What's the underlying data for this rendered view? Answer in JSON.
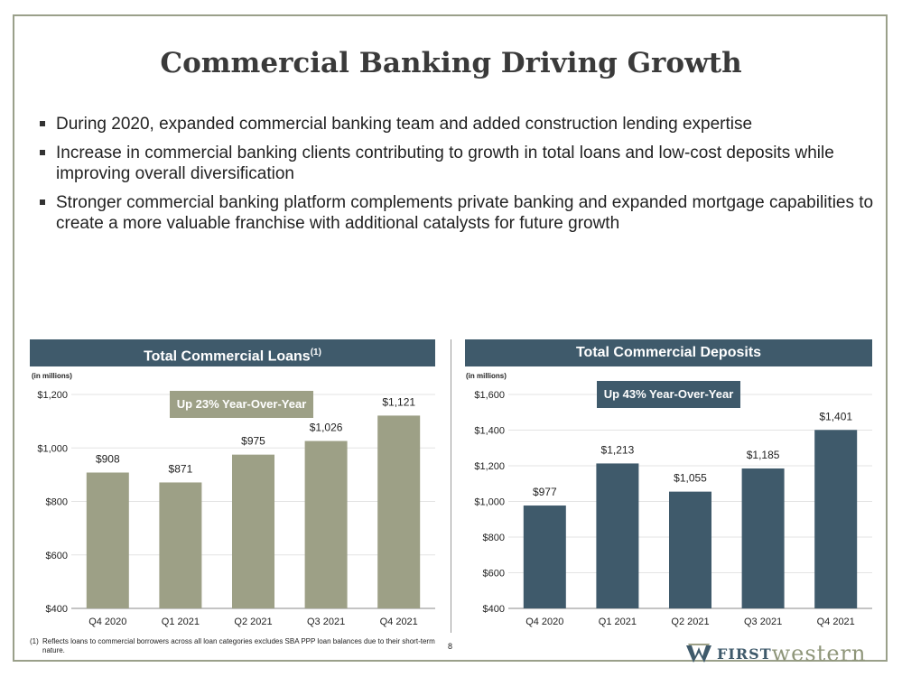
{
  "title": "Commercial Banking Driving Growth",
  "bullets": [
    "During 2020, expanded commercial banking team and added construction lending expertise",
    "Increase in commercial banking clients contributing to growth in total loans and low-cost deposits while improving overall diversification",
    "Stronger commercial banking platform complements private banking and expanded mortgage capabilities to create a more valuable franchise with additional catalysts for future growth"
  ],
  "loans_panel": {
    "header": "Total Commercial Loans",
    "header_sup": "(1)",
    "unit": "(in millions)",
    "callout": "Up 23% Year-Over-Year"
  },
  "deposits_panel": {
    "header": "Total Commercial Deposits",
    "unit": "(in millions)",
    "callout": "Up 43% Year-Over-Year"
  },
  "colors": {
    "loans_bar": "#9da086",
    "deposits_bar": "#3f5a6b",
    "header_bg": "#3f5a6b",
    "frame": "#9aa08a"
  },
  "chart_data": [
    {
      "type": "bar",
      "title": "Total Commercial Loans(1)",
      "categories": [
        "Q4 2020",
        "Q1 2021",
        "Q2 2021",
        "Q3 2021",
        "Q4 2021"
      ],
      "values": [
        908,
        871,
        975,
        1026,
        1121
      ],
      "value_labels": [
        "$908",
        "$871",
        "$975",
        "$1,026",
        "$1,121"
      ],
      "ylim": [
        400,
        1200
      ],
      "yticks": [
        400,
        600,
        800,
        1000,
        1200
      ],
      "ytick_labels": [
        "$400",
        "$600",
        "$800",
        "$1,000",
        "$1,200"
      ],
      "grid": true,
      "ylabel": "(in millions)"
    },
    {
      "type": "bar",
      "title": "Total Commercial Deposits",
      "categories": [
        "Q4 2020",
        "Q1 2021",
        "Q2 2021",
        "Q3 2021",
        "Q4 2021"
      ],
      "values": [
        977,
        1213,
        1055,
        1185,
        1401
      ],
      "value_labels": [
        "$977",
        "$1,213",
        "$1,055",
        "$1,185",
        "$1,401"
      ],
      "ylim": [
        400,
        1600
      ],
      "yticks": [
        400,
        600,
        800,
        1000,
        1200,
        1400,
        1600
      ],
      "ytick_labels": [
        "$400",
        "$600",
        "$800",
        "$1,000",
        "$1,200",
        "$1,400",
        "$1,600"
      ],
      "grid": true,
      "ylabel": "(in millions)"
    }
  ],
  "footnote": {
    "num": "(1)",
    "text": "Reflects loans to commercial borrowers across all loan categories excludes SBA PPP loan balances due to their short-term nature."
  },
  "page_number": "8",
  "logo": {
    "first": "FIRST",
    "western": "western"
  }
}
